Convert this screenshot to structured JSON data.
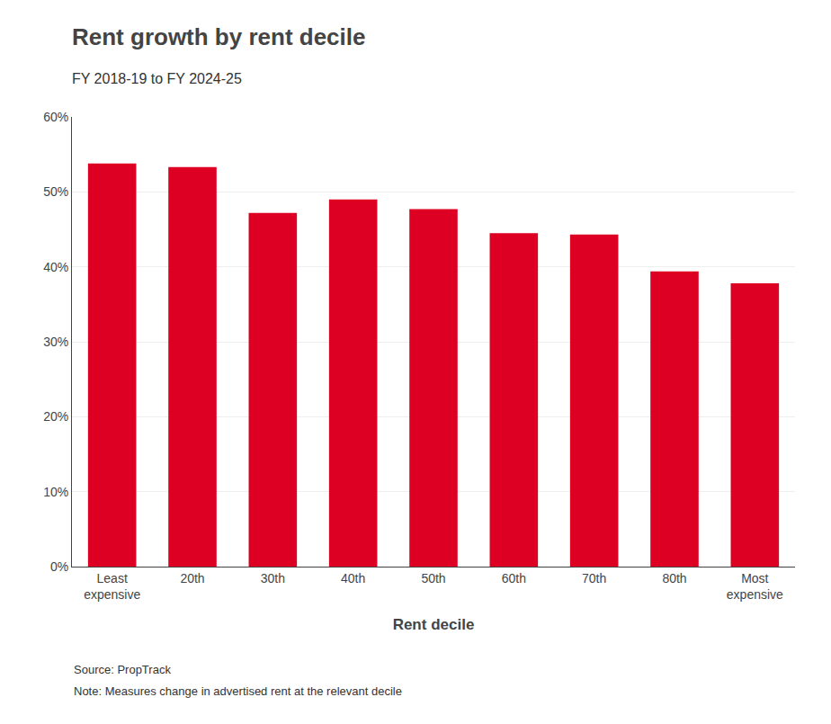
{
  "chart_data": {
    "type": "bar",
    "title": "Rent growth by rent decile",
    "subtitle": "FY 2018-19 to FY 2024-25",
    "xlabel": "Rent decile",
    "categories": [
      "Least\nexpensive",
      "20th",
      "30th",
      "40th",
      "50th",
      "60th",
      "70th",
      "80th",
      "Most\nexpensive"
    ],
    "values": [
      0.538,
      0.533,
      0.472,
      0.49,
      0.477,
      0.445,
      0.443,
      0.394,
      0.378
    ],
    "color": "#DD0022",
    "ylim": [
      0,
      0.6
    ],
    "yticks": [
      {
        "value": 0,
        "label": "0%"
      },
      {
        "value": 0.1,
        "label": "10%"
      },
      {
        "value": 0.2,
        "label": "20%"
      },
      {
        "value": 0.3,
        "label": "30%"
      },
      {
        "value": 0.4,
        "label": "40%"
      },
      {
        "value": 0.5,
        "label": "50%"
      },
      {
        "value": 0.6,
        "label": "60%"
      }
    ],
    "grid": true,
    "annotations": [
      "Source: PropTrack",
      "Note: Measures change in advertised rent at the relevant decile"
    ]
  }
}
